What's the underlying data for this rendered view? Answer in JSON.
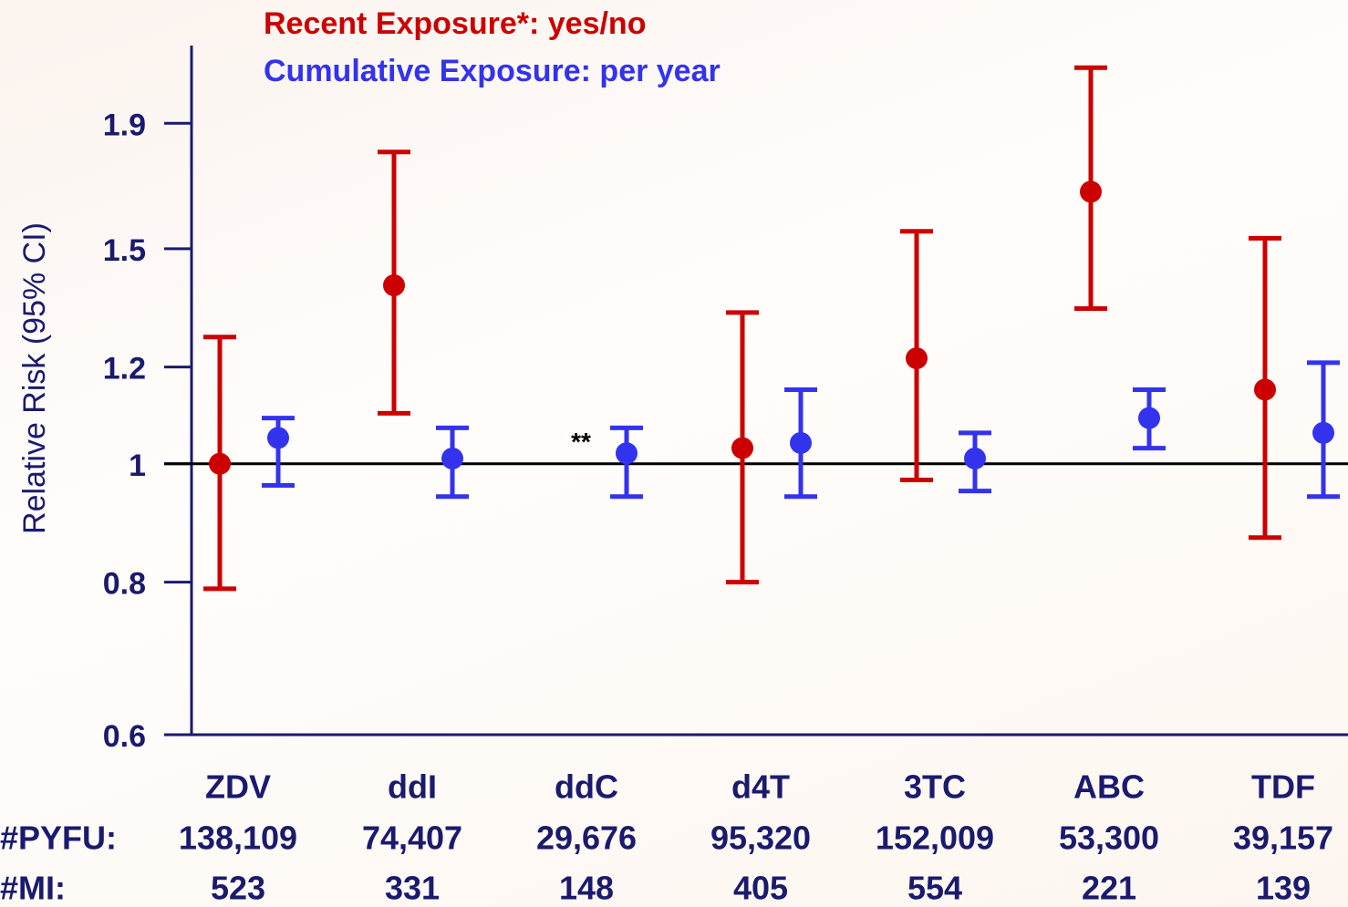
{
  "chart_data": {
    "type": "errorbar",
    "y_label": "Relative Risk (95% CI)",
    "log_y": true,
    "ylim": [
      0.6,
      2.2
    ],
    "yticks": [
      0.6,
      0.8,
      1,
      1.2,
      1.5,
      1.9
    ],
    "reference_line": 1,
    "categories": [
      "ZDV",
      "ddI",
      "ddC",
      "d4T",
      "3TC",
      "ABC",
      "TDF"
    ],
    "series": [
      {
        "name": "Recent Exposure*: yes/no",
        "color": "#cc0000",
        "values": [
          1.0,
          1.4,
          null,
          1.03,
          1.22,
          1.67,
          1.15
        ],
        "lower": [
          0.79,
          1.1,
          null,
          0.8,
          0.97,
          1.34,
          0.87
        ],
        "upper": [
          1.27,
          1.8,
          null,
          1.33,
          1.55,
          2.11,
          1.53
        ]
      },
      {
        "name": "Cumulative Exposure: per year",
        "color": "#3333ee",
        "values": [
          1.05,
          1.01,
          1.02,
          1.04,
          1.01,
          1.09,
          1.06
        ],
        "lower": [
          0.96,
          0.94,
          0.94,
          0.94,
          0.95,
          1.03,
          0.94
        ],
        "upper": [
          1.09,
          1.07,
          1.07,
          1.15,
          1.06,
          1.15,
          1.21
        ]
      }
    ],
    "annotations": [
      {
        "text": "**",
        "category": "ddC"
      }
    ],
    "rows": [
      {
        "label": "#PYFU:",
        "values": [
          "138,109",
          "74,407",
          "29,676",
          "95,320",
          "152,009",
          "53,300",
          "39,157"
        ]
      },
      {
        "label": "#MI:",
        "values": [
          "523",
          "331",
          "148",
          "405",
          "554",
          "221",
          "139"
        ]
      }
    ]
  }
}
